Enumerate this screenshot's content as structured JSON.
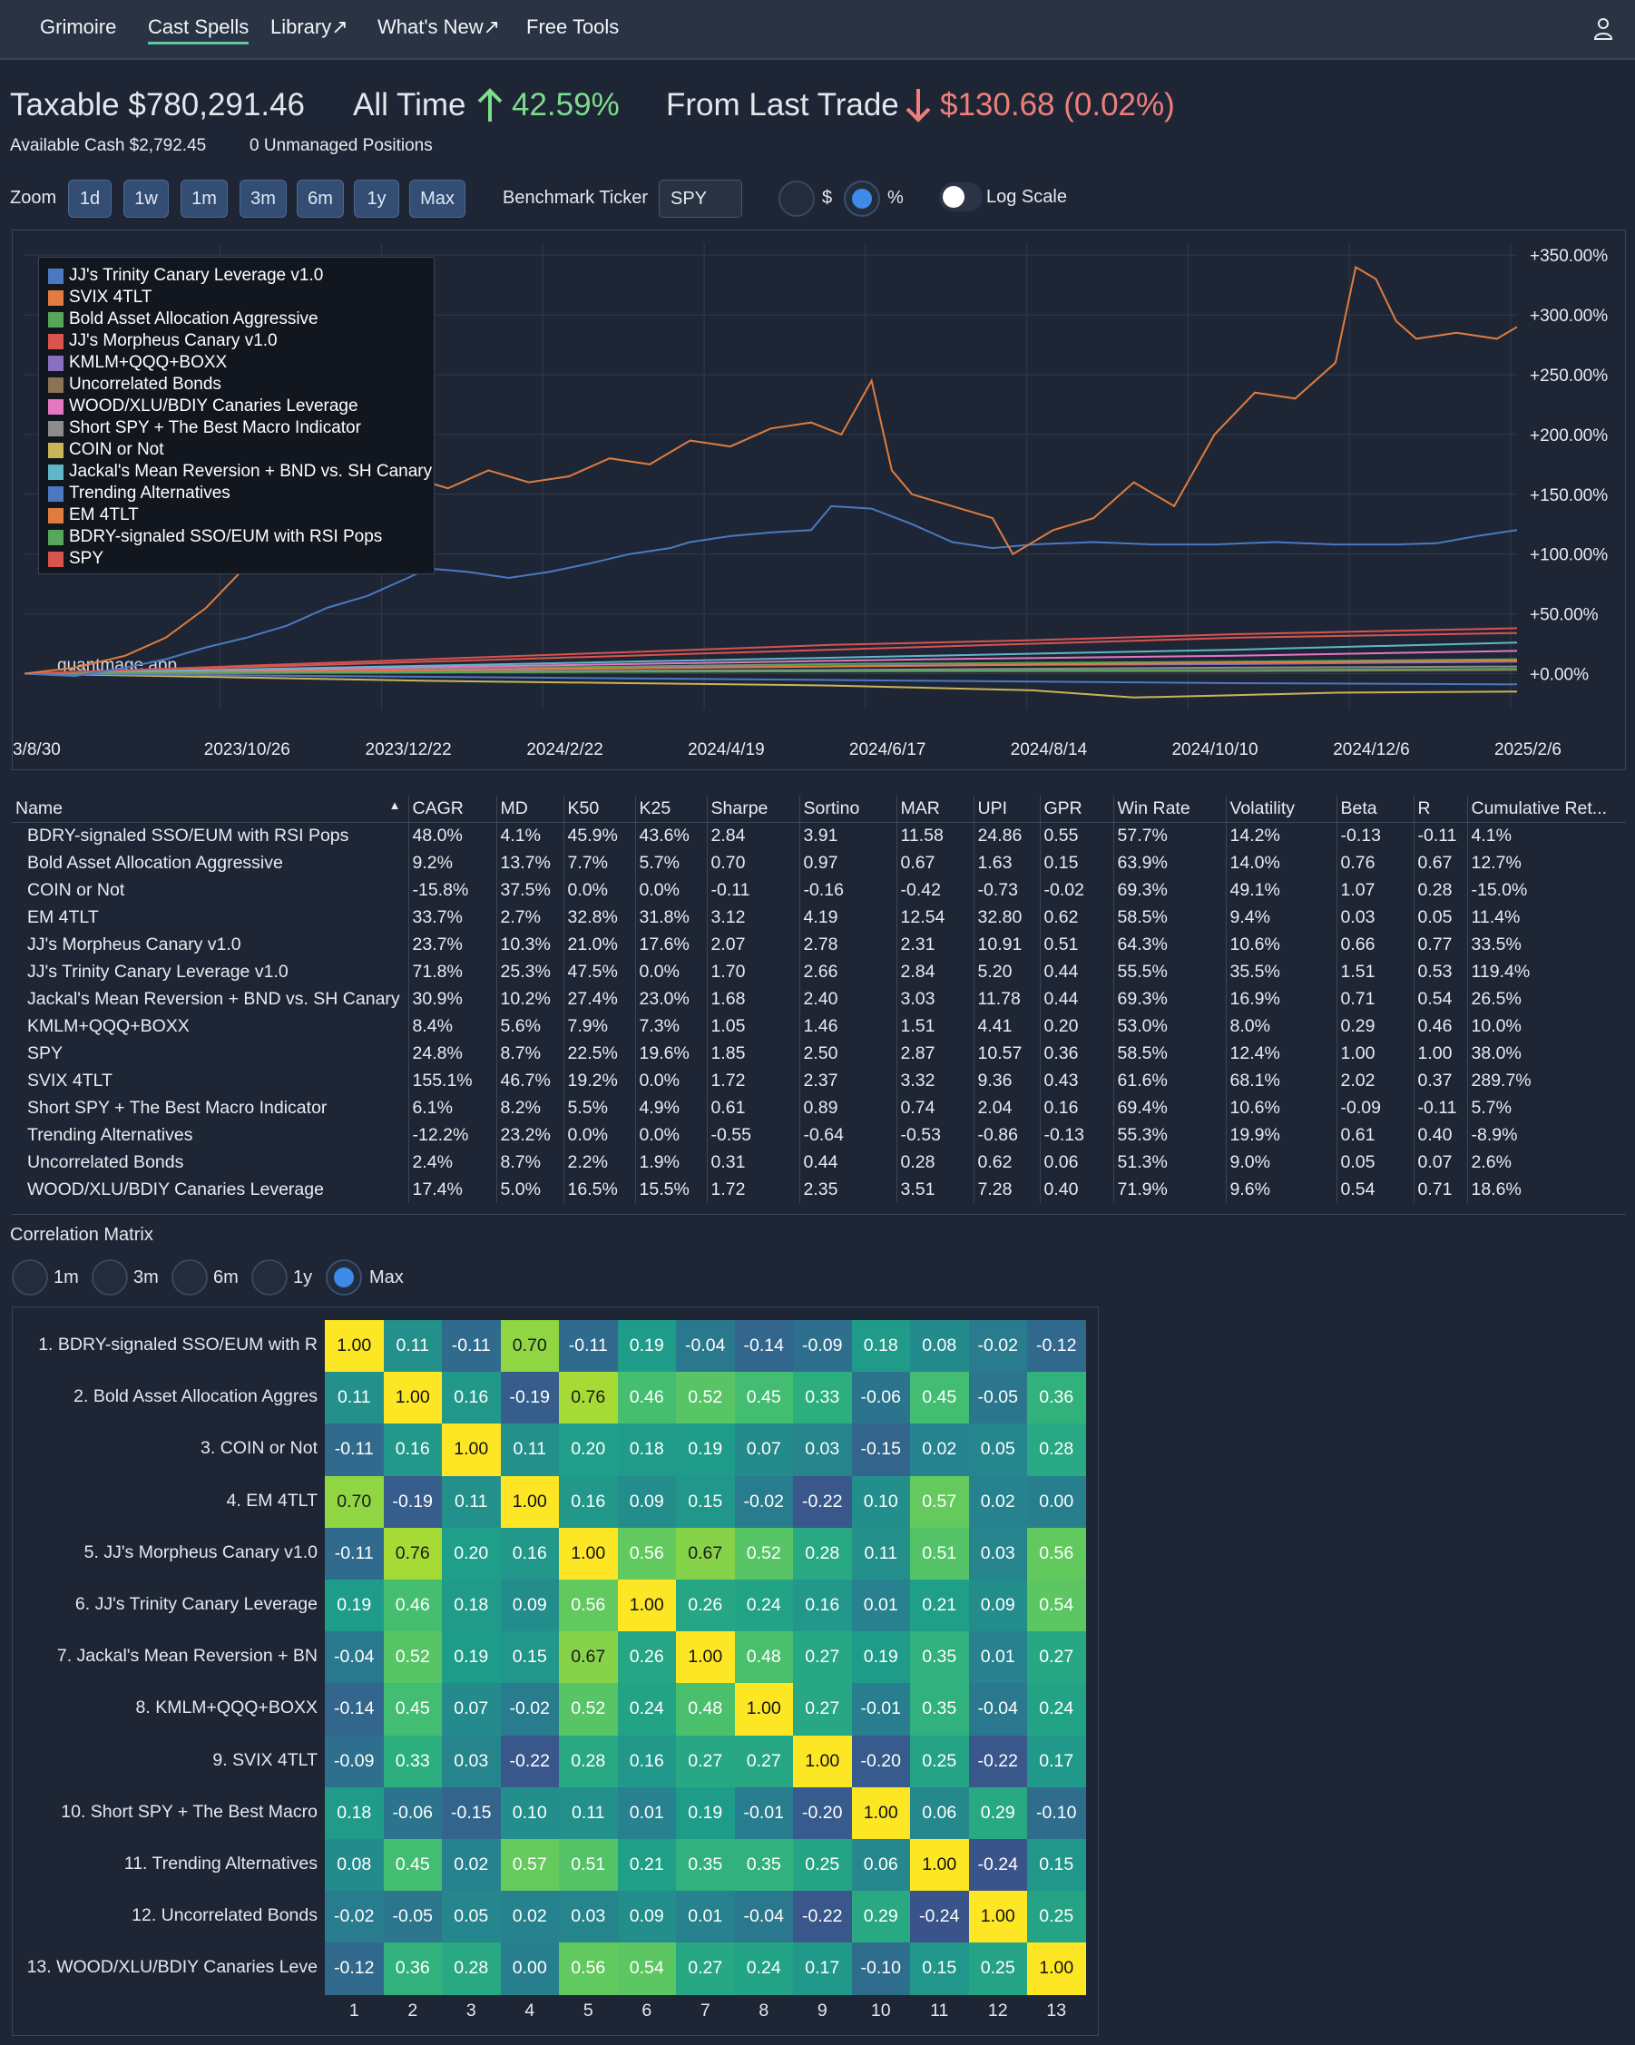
{
  "nav": {
    "items": [
      "Grimoire",
      "Cast Spells",
      "Library↗",
      "What's New↗",
      "Free Tools"
    ],
    "active": "Cast Spells"
  },
  "summary": {
    "account": "Taxable $780,291.46",
    "all_time_label": "All Time",
    "all_time_value": "42.59%",
    "last_trade_label": "From Last Trade",
    "last_trade_value": "$130.68 (0.02%)",
    "available_cash": "Available Cash $2,792.45",
    "unmanaged": "0 Unmanaged Positions"
  },
  "controls": {
    "zoom_label": "Zoom",
    "zoom_buttons": [
      "1d",
      "1w",
      "1m",
      "3m",
      "6m",
      "1y",
      "Max"
    ],
    "benchmark_label": "Benchmark Ticker",
    "benchmark_value": "SPY",
    "mode_dollar": "$",
    "mode_percent": "%",
    "mode_selected": "%",
    "log_scale_label": "Log Scale",
    "log_scale_on": false
  },
  "chart_data": {
    "type": "line",
    "watermark": "quantmage.app",
    "x_ticks": [
      "3/8/30",
      "2023/10/26",
      "2023/12/22",
      "2024/2/22",
      "2024/4/19",
      "2024/6/17",
      "2024/8/14",
      "2024/10/10",
      "2024/12/6",
      "2025/2/6"
    ],
    "y_ticks": [
      "+350.00%",
      "+300.00%",
      "+250.00%",
      "+200.00%",
      "+150.00%",
      "+100.00%",
      "+50.00%",
      "+0.00%"
    ],
    "ylim": [
      -30,
      360
    ],
    "grid": true,
    "legend_position": "top-left",
    "series": [
      {
        "name": "JJ's Trinity Canary Leverage v1.0",
        "color": "#4c78c2",
        "points": [
          [
            0,
            0
          ],
          [
            5,
            -2
          ],
          [
            10,
            5
          ],
          [
            14,
            12
          ],
          [
            18,
            22
          ],
          [
            22,
            30
          ],
          [
            26,
            40
          ],
          [
            30,
            55
          ],
          [
            34,
            65
          ],
          [
            38,
            80
          ],
          [
            40,
            88
          ],
          [
            44,
            85
          ],
          [
            48,
            80
          ],
          [
            52,
            85
          ],
          [
            56,
            92
          ],
          [
            60,
            100
          ],
          [
            64,
            105
          ],
          [
            66,
            110
          ],
          [
            70,
            115
          ],
          [
            74,
            118
          ],
          [
            78,
            120
          ],
          [
            80,
            140
          ],
          [
            84,
            138
          ],
          [
            88,
            125
          ],
          [
            92,
            110
          ],
          [
            96,
            105
          ],
          [
            100,
            108
          ],
          [
            106,
            110
          ],
          [
            112,
            108
          ],
          [
            118,
            108
          ],
          [
            124,
            110
          ],
          [
            130,
            108
          ],
          [
            136,
            108
          ],
          [
            140,
            109
          ],
          [
            144,
            115
          ],
          [
            148,
            120
          ]
        ]
      },
      {
        "name": "SVIX 4TLT",
        "color": "#e07c3e",
        "points": [
          [
            0,
            0
          ],
          [
            5,
            5
          ],
          [
            10,
            15
          ],
          [
            14,
            30
          ],
          [
            18,
            55
          ],
          [
            22,
            90
          ],
          [
            26,
            115
          ],
          [
            30,
            125
          ],
          [
            34,
            150
          ],
          [
            38,
            165
          ],
          [
            42,
            155
          ],
          [
            46,
            170
          ],
          [
            50,
            160
          ],
          [
            54,
            165
          ],
          [
            58,
            180
          ],
          [
            62,
            175
          ],
          [
            66,
            195
          ],
          [
            70,
            190
          ],
          [
            74,
            205
          ],
          [
            78,
            210
          ],
          [
            81,
            200
          ],
          [
            84,
            245
          ],
          [
            86,
            170
          ],
          [
            88,
            150
          ],
          [
            92,
            140
          ],
          [
            96,
            130
          ],
          [
            98,
            100
          ],
          [
            102,
            120
          ],
          [
            106,
            130
          ],
          [
            110,
            160
          ],
          [
            114,
            140
          ],
          [
            118,
            200
          ],
          [
            122,
            235
          ],
          [
            126,
            230
          ],
          [
            130,
            260
          ],
          [
            132,
            340
          ],
          [
            134,
            330
          ],
          [
            136,
            295
          ],
          [
            138,
            280
          ],
          [
            142,
            285
          ],
          [
            146,
            280
          ],
          [
            148,
            290
          ]
        ]
      },
      {
        "name": "Bold Asset Allocation Aggressive",
        "color": "#58a55c",
        "points": [
          [
            0,
            0
          ],
          [
            20,
            2
          ],
          [
            40,
            4
          ],
          [
            60,
            6
          ],
          [
            80,
            8
          ],
          [
            100,
            9
          ],
          [
            120,
            10
          ],
          [
            148,
            12
          ]
        ]
      },
      {
        "name": "JJ's Morpheus Canary v1.0",
        "color": "#d9534f",
        "points": [
          [
            0,
            0
          ],
          [
            20,
            5
          ],
          [
            40,
            10
          ],
          [
            60,
            15
          ],
          [
            80,
            20
          ],
          [
            100,
            25
          ],
          [
            120,
            30
          ],
          [
            148,
            34
          ]
        ]
      },
      {
        "name": "KMLM+QQQ+BOXX",
        "color": "#8a6fbf",
        "points": [
          [
            0,
            0
          ],
          [
            30,
            3
          ],
          [
            60,
            5
          ],
          [
            90,
            7
          ],
          [
            120,
            8
          ],
          [
            148,
            10
          ]
        ]
      },
      {
        "name": "Uncorrelated Bonds",
        "color": "#8b7355",
        "points": [
          [
            0,
            0
          ],
          [
            40,
            1
          ],
          [
            80,
            2
          ],
          [
            120,
            2
          ],
          [
            148,
            3
          ]
        ]
      },
      {
        "name": "WOOD/XLU/BDIY Canaries Leverage",
        "color": "#e377c2",
        "points": [
          [
            0,
            0
          ],
          [
            30,
            4
          ],
          [
            60,
            8
          ],
          [
            90,
            12
          ],
          [
            120,
            15
          ],
          [
            148,
            19
          ]
        ]
      },
      {
        "name": "Short SPY + The Best Macro Indicator",
        "color": "#8c8c8c",
        "points": [
          [
            0,
            0
          ],
          [
            40,
            2
          ],
          [
            80,
            3
          ],
          [
            120,
            5
          ],
          [
            148,
            6
          ]
        ]
      },
      {
        "name": "COIN or Not",
        "color": "#c9b458",
        "points": [
          [
            0,
            0
          ],
          [
            20,
            -3
          ],
          [
            40,
            -6
          ],
          [
            60,
            -8
          ],
          [
            80,
            -10
          ],
          [
            100,
            -14
          ],
          [
            110,
            -20
          ],
          [
            120,
            -18
          ],
          [
            130,
            -16
          ],
          [
            148,
            -15
          ]
        ]
      },
      {
        "name": "Jackal's Mean Reversion + BND vs. SH Canary",
        "color": "#5fb6c9",
        "points": [
          [
            0,
            0
          ],
          [
            30,
            5
          ],
          [
            60,
            10
          ],
          [
            90,
            15
          ],
          [
            120,
            20
          ],
          [
            148,
            26
          ]
        ]
      },
      {
        "name": "Trending Alternatives",
        "color": "#4c78c2",
        "points": [
          [
            0,
            0
          ],
          [
            30,
            -2
          ],
          [
            60,
            -4
          ],
          [
            90,
            -6
          ],
          [
            120,
            -8
          ],
          [
            148,
            -9
          ]
        ]
      },
      {
        "name": "EM 4TLT",
        "color": "#e07c3e",
        "points": [
          [
            0,
            0
          ],
          [
            40,
            3
          ],
          [
            80,
            6
          ],
          [
            120,
            9
          ],
          [
            148,
            11
          ]
        ]
      },
      {
        "name": "BDRY-signaled SSO/EUM with RSI Pops",
        "color": "#58a55c",
        "points": [
          [
            0,
            0
          ],
          [
            40,
            1
          ],
          [
            80,
            2
          ],
          [
            120,
            3
          ],
          [
            148,
            4
          ]
        ]
      },
      {
        "name": "SPY",
        "color": "#d9534f",
        "points": [
          [
            0,
            0
          ],
          [
            20,
            6
          ],
          [
            40,
            12
          ],
          [
            60,
            18
          ],
          [
            80,
            24
          ],
          [
            100,
            28
          ],
          [
            120,
            33
          ],
          [
            148,
            38
          ]
        ]
      }
    ]
  },
  "stats_table": {
    "columns": [
      "Name",
      "CAGR",
      "MD",
      "K50",
      "K25",
      "Sharpe",
      "Sortino",
      "MAR",
      "UPI",
      "GPR",
      "Win Rate",
      "Volatility",
      "Beta",
      "R",
      "Cumulative Ret..."
    ],
    "sort_indicator": "▲",
    "rows": [
      [
        "BDRY-signaled SSO/EUM with RSI Pops",
        "48.0%",
        "4.1%",
        "45.9%",
        "43.6%",
        "2.84",
        "3.91",
        "11.58",
        "24.86",
        "0.55",
        "57.7%",
        "14.2%",
        "-0.13",
        "-0.11",
        "4.1%"
      ],
      [
        "Bold Asset Allocation Aggressive",
        "9.2%",
        "13.7%",
        "7.7%",
        "5.7%",
        "0.70",
        "0.97",
        "0.67",
        "1.63",
        "0.15",
        "63.9%",
        "14.0%",
        "0.76",
        "0.67",
        "12.7%"
      ],
      [
        "COIN or Not",
        "-15.8%",
        "37.5%",
        "0.0%",
        "0.0%",
        "-0.11",
        "-0.16",
        "-0.42",
        "-0.73",
        "-0.02",
        "69.3%",
        "49.1%",
        "1.07",
        "0.28",
        "-15.0%"
      ],
      [
        "EM 4TLT",
        "33.7%",
        "2.7%",
        "32.8%",
        "31.8%",
        "3.12",
        "4.19",
        "12.54",
        "32.80",
        "0.62",
        "58.5%",
        "9.4%",
        "0.03",
        "0.05",
        "11.4%"
      ],
      [
        "JJ's Morpheus Canary v1.0",
        "23.7%",
        "10.3%",
        "21.0%",
        "17.6%",
        "2.07",
        "2.78",
        "2.31",
        "10.91",
        "0.51",
        "64.3%",
        "10.6%",
        "0.66",
        "0.77",
        "33.5%"
      ],
      [
        "JJ's Trinity Canary Leverage v1.0",
        "71.8%",
        "25.3%",
        "47.5%",
        "0.0%",
        "1.70",
        "2.66",
        "2.84",
        "5.20",
        "0.44",
        "55.5%",
        "35.5%",
        "1.51",
        "0.53",
        "119.4%"
      ],
      [
        "Jackal's Mean Reversion + BND vs. SH Canary",
        "30.9%",
        "10.2%",
        "27.4%",
        "23.0%",
        "1.68",
        "2.40",
        "3.03",
        "11.78",
        "0.44",
        "69.3%",
        "16.9%",
        "0.71",
        "0.54",
        "26.5%"
      ],
      [
        "KMLM+QQQ+BOXX",
        "8.4%",
        "5.6%",
        "7.9%",
        "7.3%",
        "1.05",
        "1.46",
        "1.51",
        "4.41",
        "0.20",
        "53.0%",
        "8.0%",
        "0.29",
        "0.46",
        "10.0%"
      ],
      [
        "SPY",
        "24.8%",
        "8.7%",
        "22.5%",
        "19.6%",
        "1.85",
        "2.50",
        "2.87",
        "10.57",
        "0.36",
        "58.5%",
        "12.4%",
        "1.00",
        "1.00",
        "38.0%"
      ],
      [
        "SVIX 4TLT",
        "155.1%",
        "46.7%",
        "19.2%",
        "0.0%",
        "1.72",
        "2.37",
        "3.32",
        "9.36",
        "0.43",
        "61.6%",
        "68.1%",
        "2.02",
        "0.37",
        "289.7%"
      ],
      [
        "Short SPY + The Best Macro Indicator",
        "6.1%",
        "8.2%",
        "5.5%",
        "4.9%",
        "0.61",
        "0.89",
        "0.74",
        "2.04",
        "0.16",
        "69.4%",
        "10.6%",
        "-0.09",
        "-0.11",
        "5.7%"
      ],
      [
        "Trending Alternatives",
        "-12.2%",
        "23.2%",
        "0.0%",
        "0.0%",
        "-0.55",
        "-0.64",
        "-0.53",
        "-0.86",
        "-0.13",
        "55.3%",
        "19.9%",
        "0.61",
        "0.40",
        "-8.9%"
      ],
      [
        "Uncorrelated Bonds",
        "2.4%",
        "8.7%",
        "2.2%",
        "1.9%",
        "0.31",
        "0.44",
        "0.28",
        "0.62",
        "0.06",
        "51.3%",
        "9.0%",
        "0.05",
        "0.07",
        "2.6%"
      ],
      [
        "WOOD/XLU/BDIY Canaries Leverage",
        "17.4%",
        "5.0%",
        "16.5%",
        "15.5%",
        "1.72",
        "2.35",
        "3.51",
        "7.28",
        "0.40",
        "71.9%",
        "9.6%",
        "0.54",
        "0.71",
        "18.6%"
      ]
    ]
  },
  "correlation": {
    "title": "Correlation Matrix",
    "periods": [
      "1m",
      "3m",
      "6m",
      "1y",
      "Max"
    ],
    "selected_period": "Max",
    "row_labels": [
      "1. BDRY-signaled SSO/EUM with R",
      "2. Bold Asset Allocation Aggres",
      "3. COIN or Not",
      "4. EM 4TLT",
      "5. JJ's Morpheus Canary v1.0",
      "6. JJ's Trinity Canary Leverage",
      "7. Jackal's Mean Reversion + BN",
      "8. KMLM+QQQ+BOXX",
      "9. SVIX 4TLT",
      "10. Short SPY + The Best Macro",
      "11. Trending Alternatives",
      "12. Uncorrelated Bonds",
      "13. WOOD/XLU/BDIY Canaries Leve"
    ],
    "col_labels": [
      "1",
      "2",
      "3",
      "4",
      "5",
      "6",
      "7",
      "8",
      "9",
      "10",
      "11",
      "12",
      "13"
    ],
    "matrix": [
      [
        "1.00",
        "0.11",
        "-0.11",
        "0.70",
        "-0.11",
        "0.19",
        "-0.04",
        "-0.14",
        "-0.09",
        "0.18",
        "0.08",
        "-0.02",
        "-0.12"
      ],
      [
        "0.11",
        "1.00",
        "0.16",
        "-0.19",
        "0.76",
        "0.46",
        "0.52",
        "0.45",
        "0.33",
        "-0.06",
        "0.45",
        "-0.05",
        "0.36"
      ],
      [
        "-0.11",
        "0.16",
        "1.00",
        "0.11",
        "0.20",
        "0.18",
        "0.19",
        "0.07",
        "0.03",
        "-0.15",
        "0.02",
        "0.05",
        "0.28"
      ],
      [
        "0.70",
        "-0.19",
        "0.11",
        "1.00",
        "0.16",
        "0.09",
        "0.15",
        "-0.02",
        "-0.22",
        "0.10",
        "0.57",
        "0.02",
        "0.00"
      ],
      [
        "-0.11",
        "0.76",
        "0.20",
        "0.16",
        "1.00",
        "0.56",
        "0.67",
        "0.52",
        "0.28",
        "0.11",
        "0.51",
        "0.03",
        "0.56"
      ],
      [
        "0.19",
        "0.46",
        "0.18",
        "0.09",
        "0.56",
        "1.00",
        "0.26",
        "0.24",
        "0.16",
        "0.01",
        "0.21",
        "0.09",
        "0.54"
      ],
      [
        "-0.04",
        "0.52",
        "0.19",
        "0.15",
        "0.67",
        "0.26",
        "1.00",
        "0.48",
        "0.27",
        "0.19",
        "0.35",
        "0.01",
        "0.27"
      ],
      [
        "-0.14",
        "0.45",
        "0.07",
        "-0.02",
        "0.52",
        "0.24",
        "0.48",
        "1.00",
        "0.27",
        "-0.01",
        "0.35",
        "-0.04",
        "0.24"
      ],
      [
        "-0.09",
        "0.33",
        "0.03",
        "-0.22",
        "0.28",
        "0.16",
        "0.27",
        "0.27",
        "1.00",
        "-0.20",
        "0.25",
        "-0.22",
        "0.17"
      ],
      [
        "0.18",
        "-0.06",
        "-0.15",
        "0.10",
        "0.11",
        "0.01",
        "0.19",
        "-0.01",
        "-0.20",
        "1.00",
        "0.06",
        "0.29",
        "-0.10"
      ],
      [
        "0.08",
        "0.45",
        "0.02",
        "0.57",
        "0.51",
        "0.21",
        "0.35",
        "0.35",
        "0.25",
        "0.06",
        "1.00",
        "-0.24",
        "0.15"
      ],
      [
        "-0.02",
        "-0.05",
        "0.05",
        "0.02",
        "0.03",
        "0.09",
        "0.01",
        "-0.04",
        "-0.22",
        "0.29",
        "-0.24",
        "1.00",
        "0.25"
      ],
      [
        "-0.12",
        "0.36",
        "0.28",
        "0.00",
        "0.56",
        "0.54",
        "0.27",
        "0.24",
        "0.17",
        "-0.10",
        "0.15",
        "0.25",
        "1.00"
      ]
    ]
  }
}
